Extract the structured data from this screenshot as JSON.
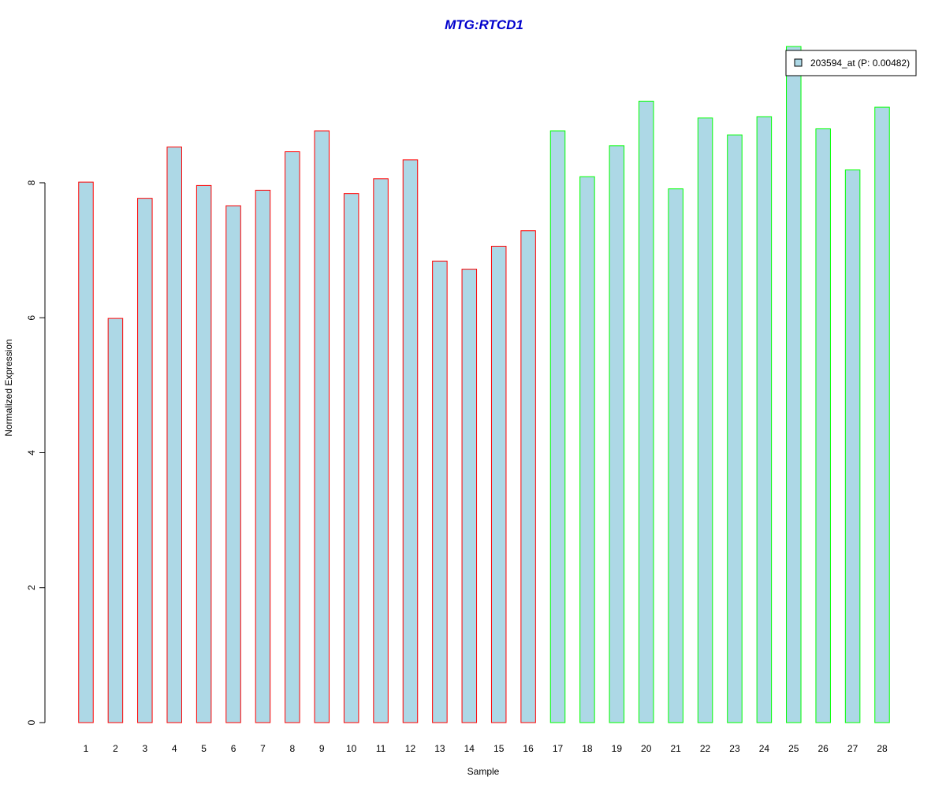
{
  "chart_data": {
    "type": "bar",
    "title": "MTG:RTCD1",
    "xlabel": "Sample",
    "ylabel": "Normalized Expression",
    "categories": [
      "1",
      "2",
      "3",
      "4",
      "5",
      "6",
      "7",
      "8",
      "9",
      "10",
      "11",
      "12",
      "13",
      "14",
      "15",
      "16",
      "17",
      "18",
      "19",
      "20",
      "21",
      "22",
      "23",
      "24",
      "25",
      "26",
      "27",
      "28"
    ],
    "values": [
      8.01,
      5.99,
      7.77,
      8.53,
      7.96,
      7.66,
      7.89,
      8.46,
      8.77,
      7.84,
      8.06,
      8.34,
      6.84,
      6.72,
      7.06,
      7.29,
      8.77,
      8.09,
      8.55,
      9.21,
      7.91,
      8.96,
      8.71,
      8.98,
      10.02,
      8.8,
      8.19,
      9.12
    ],
    "series": [
      {
        "name": "203594_at (P: 0.00482)",
        "values": [
          8.01,
          5.99,
          7.77,
          8.53,
          7.96,
          7.66,
          7.89,
          8.46,
          8.77,
          7.84,
          8.06,
          8.34,
          6.84,
          6.72,
          7.06,
          7.29,
          8.77,
          8.09,
          8.55,
          9.21,
          7.91,
          8.96,
          8.71,
          8.98,
          10.02,
          8.8,
          8.19,
          9.12
        ]
      }
    ],
    "group_split_after": 16,
    "ylim": [
      0,
      10.02
    ],
    "yticks": [
      0,
      2,
      4,
      6,
      8
    ],
    "grid": false,
    "legend_position": "top-right",
    "colors": {
      "fill": "#add8e6",
      "border_group1": "#ff0000",
      "border_group2": "#00ff00",
      "title": "#0000cc",
      "axis": "#000000"
    }
  }
}
